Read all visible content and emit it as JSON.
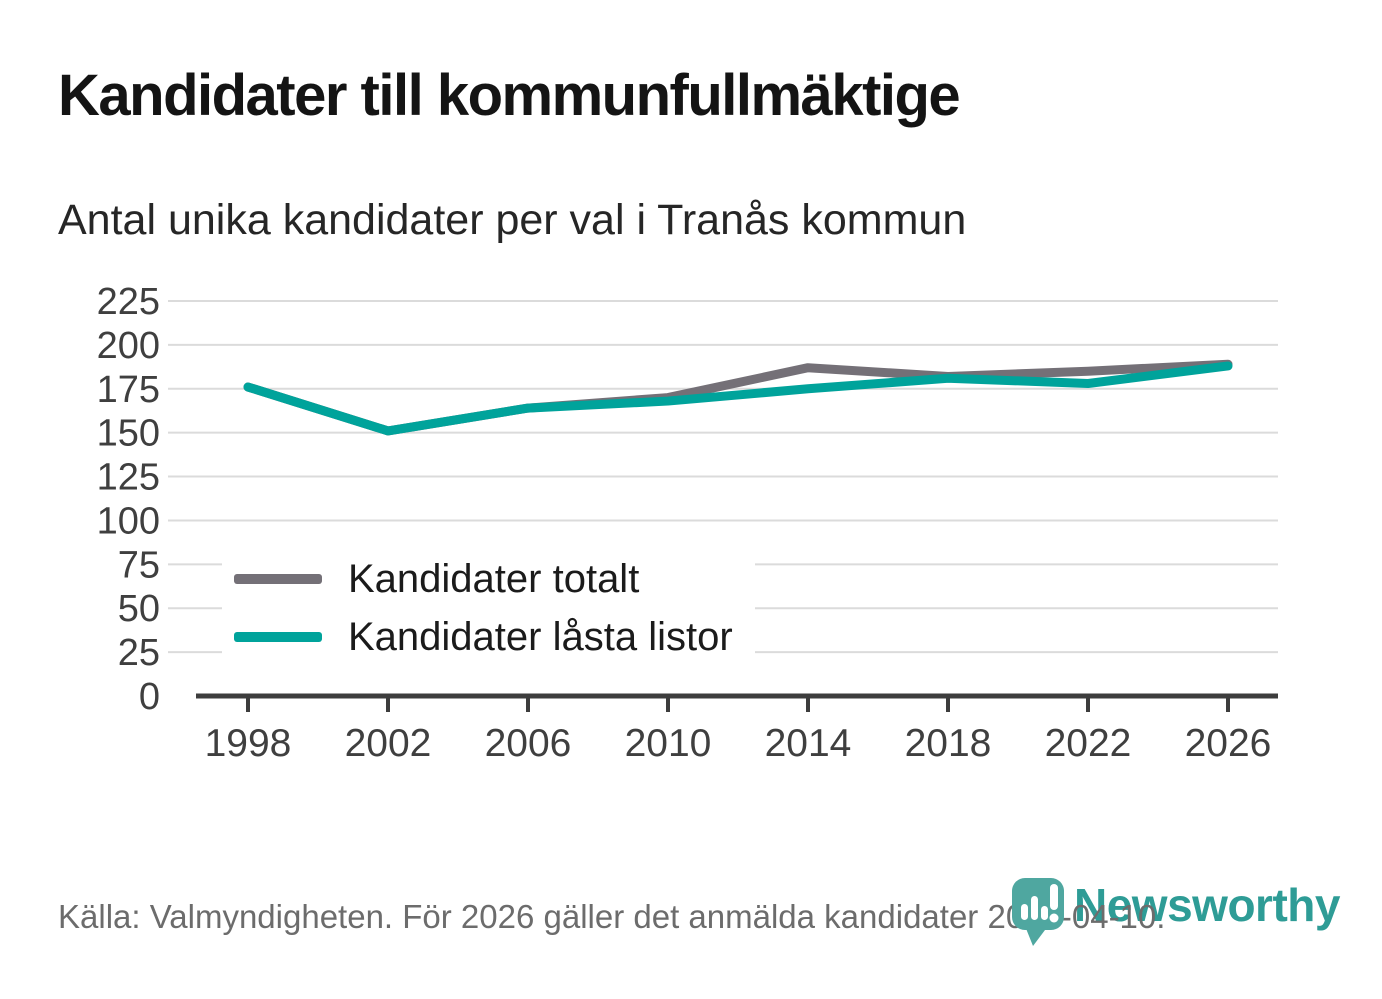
{
  "header": {
    "title": "Kandidater till kommunfullmäktige",
    "subtitle": "Antal unika kandidater per val i Tranås kommun"
  },
  "chart_data": {
    "type": "line",
    "categories": [
      "1998",
      "2002",
      "2006",
      "2010",
      "2014",
      "2018",
      "2022",
      "2026"
    ],
    "series": [
      {
        "name": "Kandidater totalt",
        "color": "#747077",
        "values": [
          176,
          151,
          164,
          170,
          187,
          182,
          185,
          189
        ]
      },
      {
        "name": "Kandidater låsta listor",
        "color": "#00a39b",
        "values": [
          176,
          151,
          164,
          168,
          175,
          181,
          178,
          188
        ]
      }
    ],
    "title": "Kandidater till kommunfullmäktige",
    "subtitle": "Antal unika kandidater per val i Tranås kommun",
    "xlabel": "",
    "ylabel": "",
    "ylim": [
      0,
      225
    ],
    "ytick_step": 25,
    "grid": true,
    "legend_position": "inside-bottom-left"
  },
  "footer": {
    "source": "Källa: Valmyndigheten. För 2026 gäller det anmälda kandidater 2026-04-10."
  },
  "logo": {
    "brand": "Newsworthy",
    "pin_icon": "map-pin-bar-chart-icon"
  },
  "colors": {
    "accent_teal": "#00a39b",
    "series_gray": "#747077",
    "logo_pin": "#4fa7a0",
    "logo_text": "#2e9c96",
    "gridline": "#dbdbdb",
    "axis": "#3d3d3d",
    "tick_text": "#3f3f3f",
    "footer_text": "#6c6c6c"
  }
}
